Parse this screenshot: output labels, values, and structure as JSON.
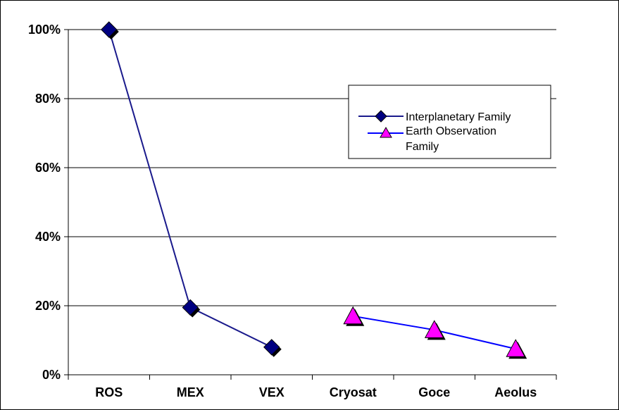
{
  "chart_data": {
    "type": "line",
    "title": "",
    "xlabel": "",
    "ylabel": "",
    "categories": [
      "ROS",
      "MEX",
      "VEX",
      "Cryosat",
      "Goce",
      "Aeolus"
    ],
    "y_ticks": [
      "0%",
      "20%",
      "40%",
      "60%",
      "80%",
      "100%"
    ],
    "ylim": [
      0,
      100
    ],
    "grid": true,
    "legend_position": "right",
    "series": [
      {
        "name": "Interplanetary Family",
        "marker": "diamond",
        "color": "#000080",
        "line_color": "#1a1a8c",
        "points": [
          {
            "category": "ROS",
            "value": 100
          },
          {
            "category": "MEX",
            "value": 19.5
          },
          {
            "category": "VEX",
            "value": 8
          }
        ]
      },
      {
        "name": "Earth Observation Family",
        "marker": "triangle",
        "color": "#ff00ff",
        "line_color": "#0000ff",
        "points": [
          {
            "category": "Cryosat",
            "value": 17
          },
          {
            "category": "Goce",
            "value": 13
          },
          {
            "category": "Aeolus",
            "value": 7.5
          }
        ]
      }
    ]
  }
}
